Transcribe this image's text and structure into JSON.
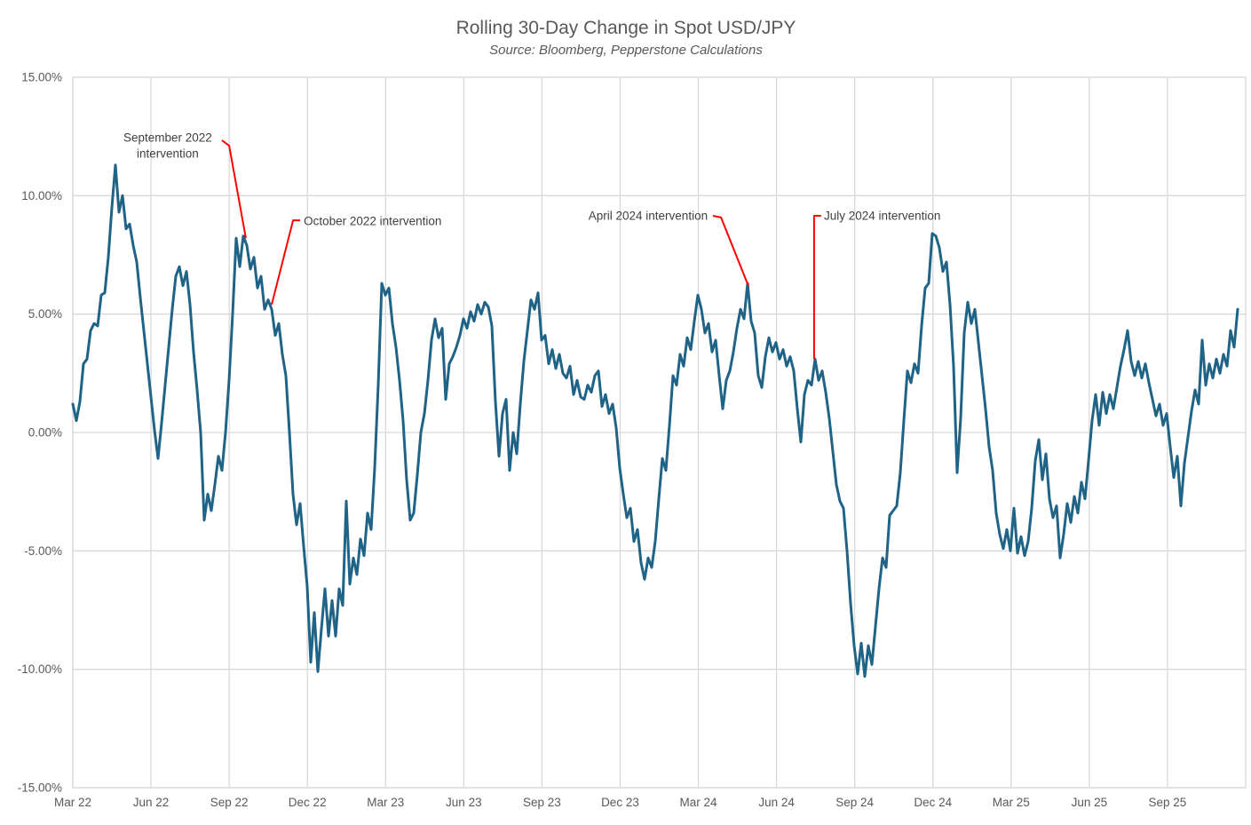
{
  "chart": {
    "title": "Rolling 30-Day Change in Spot USD/JPY",
    "subtitle": "Source: Bloomberg, Pepperstone Calculations"
  },
  "chart_data": {
    "type": "line",
    "title": "Rolling 30-Day Change in Spot USD/JPY",
    "subtitle": "Source: Bloomberg, Pepperstone Calculations",
    "xlabel": "",
    "ylabel": "",
    "x_unit": "months since Mar 2022",
    "x_range_months": [
      0,
      45
    ],
    "ylim": [
      -15,
      15
    ],
    "grid": true,
    "legend": "none",
    "y_ticks": [
      {
        "value": 15,
        "label": "15.00%"
      },
      {
        "value": 10,
        "label": "10.00%"
      },
      {
        "value": 5,
        "label": "5.00%"
      },
      {
        "value": 0,
        "label": "0.00%"
      },
      {
        "value": -5,
        "label": "-5.00%"
      },
      {
        "value": -10,
        "label": "-10.00%"
      },
      {
        "value": -15,
        "label": "-15.00%"
      }
    ],
    "x_ticks": [
      {
        "month": 0,
        "label": "Mar 22"
      },
      {
        "month": 3,
        "label": "Jun 22"
      },
      {
        "month": 6,
        "label": "Sep 22"
      },
      {
        "month": 9,
        "label": "Dec 22"
      },
      {
        "month": 12,
        "label": "Mar 23"
      },
      {
        "month": 15,
        "label": "Jun 23"
      },
      {
        "month": 18,
        "label": "Sep 23"
      },
      {
        "month": 21,
        "label": "Dec 23"
      },
      {
        "month": 24,
        "label": "Mar 24"
      },
      {
        "month": 27,
        "label": "Jun 24"
      },
      {
        "month": 30,
        "label": "Sep 24"
      },
      {
        "month": 33,
        "label": "Dec 24"
      },
      {
        "month": 36,
        "label": "Mar 25"
      },
      {
        "month": 39,
        "label": "Jun 25"
      },
      {
        "month": 42,
        "label": "Sep 25"
      }
    ],
    "series": [
      {
        "name": "rolling-30d-pct-change",
        "x0_months": 0,
        "dx_months": 0.13626,
        "unit": "percent",
        "values": [
          1.2,
          0.5,
          1.3,
          2.9,
          3.1,
          4.3,
          4.6,
          4.5,
          5.8,
          5.9,
          7.4,
          9.5,
          11.3,
          9.3,
          10.0,
          8.6,
          8.8,
          7.9,
          7.2,
          5.7,
          4.3,
          2.9,
          1.5,
          0.1,
          -1.1,
          0.4,
          2.0,
          3.6,
          5.2,
          6.6,
          7.0,
          6.2,
          6.8,
          5.4,
          3.4,
          1.8,
          0.0,
          -3.7,
          -2.6,
          -3.3,
          -2.2,
          -1.0,
          -1.6,
          0.0,
          2.2,
          5.0,
          8.2,
          7.0,
          8.3,
          7.9,
          6.9,
          7.4,
          6.1,
          6.6,
          5.2,
          5.6,
          5.2,
          4.1,
          4.6,
          3.3,
          2.4,
          0.0,
          -2.6,
          -3.9,
          -3.0,
          -4.8,
          -6.5,
          -9.7,
          -7.6,
          -10.1,
          -8.3,
          -6.6,
          -8.6,
          -7.1,
          -8.6,
          -6.6,
          -7.3,
          -2.9,
          -6.4,
          -5.3,
          -6.0,
          -4.5,
          -5.2,
          -3.4,
          -4.1,
          -1.5,
          2.0,
          6.3,
          5.8,
          6.1,
          4.6,
          3.6,
          2.2,
          0.5,
          -2.0,
          -3.7,
          -3.4,
          -1.8,
          0.0,
          0.8,
          2.2,
          3.9,
          4.8,
          4.0,
          4.4,
          1.4,
          2.9,
          3.2,
          3.6,
          4.1,
          4.8,
          4.4,
          5.1,
          4.7,
          5.4,
          5.0,
          5.5,
          5.3,
          4.5,
          1.3,
          -1.0,
          0.8,
          1.4,
          -1.6,
          0.0,
          -0.9,
          1.2,
          3.0,
          4.3,
          5.6,
          5.2,
          5.9,
          3.9,
          4.1,
          2.9,
          3.5,
          2.7,
          3.3,
          2.5,
          2.3,
          2.8,
          1.6,
          2.2,
          1.5,
          1.4,
          2.0,
          1.7,
          2.4,
          2.6,
          1.1,
          1.6,
          0.8,
          1.2,
          0.2,
          -1.5,
          -2.6,
          -3.6,
          -3.2,
          -4.6,
          -4.1,
          -5.5,
          -6.2,
          -5.3,
          -5.7,
          -4.6,
          -2.8,
          -1.1,
          -1.6,
          0.3,
          2.4,
          2.0,
          3.3,
          2.8,
          4.0,
          3.5,
          4.7,
          5.8,
          5.2,
          4.2,
          4.6,
          3.4,
          3.9,
          2.4,
          1.0,
          2.2,
          2.6,
          3.4,
          4.4,
          5.2,
          4.8,
          6.3,
          4.7,
          4.2,
          2.4,
          1.9,
          3.2,
          4.0,
          3.4,
          3.8,
          3.1,
          3.5,
          2.8,
          3.2,
          2.6,
          1.0,
          -0.4,
          1.6,
          2.2,
          2.0,
          3.1,
          2.2,
          2.6,
          1.7,
          0.6,
          -0.8,
          -2.2,
          -2.9,
          -3.2,
          -5.0,
          -7.2,
          -9.0,
          -10.2,
          -8.9,
          -10.3,
          -9.0,
          -9.8,
          -8.2,
          -6.6,
          -5.3,
          -5.7,
          -3.5,
          -3.3,
          -3.1,
          -1.7,
          0.5,
          2.6,
          2.1,
          2.9,
          2.5,
          4.5,
          6.1,
          6.3,
          8.4,
          8.3,
          7.8,
          6.8,
          7.2,
          5.4,
          2.8,
          -1.7,
          0.6,
          4.2,
          5.5,
          4.6,
          5.2,
          3.8,
          2.4,
          1.0,
          -0.6,
          -1.6,
          -3.4,
          -4.3,
          -4.9,
          -4.1,
          -5.0,
          -3.2,
          -5.1,
          -4.4,
          -5.2,
          -4.6,
          -3.2,
          -1.2,
          -0.3,
          -2.0,
          -0.9,
          -2.8,
          -3.6,
          -3.1,
          -5.3,
          -4.3,
          -3.0,
          -3.8,
          -2.7,
          -3.4,
          -2.1,
          -2.8,
          -1.2,
          0.5,
          1.6,
          0.3,
          1.7,
          0.8,
          1.6,
          1.0,
          1.9,
          2.8,
          3.5,
          4.3,
          3.0,
          2.4,
          3.0,
          2.3,
          2.9,
          2.1,
          1.4,
          0.7,
          1.2,
          0.3,
          0.8,
          -0.6,
          -1.9,
          -1.0,
          -3.1,
          -1.3,
          -0.2,
          0.9,
          1.8,
          1.2,
          3.9,
          2.0,
          2.9,
          2.3,
          3.1,
          2.5,
          3.3,
          2.8,
          4.3,
          3.6,
          5.2
        ]
      }
    ],
    "annotations": [
      {
        "id": "sep-2022-intervention",
        "lines": [
          "September 2022",
          "intervention"
        ],
        "anchor": "middle",
        "text_m": 3.64,
        "text_v": 12.45,
        "leader_m": [
          5.72,
          6.0,
          6.64
        ],
        "leader_v": [
          12.34,
          12.11,
          8.21
        ]
      },
      {
        "id": "oct-2022-intervention",
        "lines": [
          "October 2022 intervention"
        ],
        "anchor": "start",
        "text_m": 8.86,
        "text_v": 8.93,
        "leader_m": [
          8.72,
          8.45,
          7.63
        ],
        "leader_v": [
          8.96,
          8.96,
          5.4
        ]
      },
      {
        "id": "apr-2024-intervention",
        "lines": [
          "April 2024 intervention"
        ],
        "anchor": "end",
        "text_m": 24.36,
        "text_v": 9.15,
        "leader_m": [
          24.56,
          24.87,
          25.92
        ],
        "leader_v": [
          9.15,
          9.08,
          6.19
        ]
      },
      {
        "id": "jul-2024-intervention",
        "lines": [
          "July 2024 intervention"
        ],
        "anchor": "start",
        "text_m": 28.82,
        "text_v": 9.15,
        "leader_m": [
          28.71,
          28.44,
          28.44
        ],
        "leader_v": [
          9.15,
          9.15,
          3.11
        ]
      }
    ],
    "colors": {
      "series_line": "#1F6386",
      "gridline": "#D9D9D9",
      "plot_border": "#D9D9D9",
      "tick_text": "#595959",
      "title_text": "#595959",
      "annotation_text": "#404040",
      "annotation_line": "#FF0000",
      "background": "#FFFFFF"
    }
  }
}
